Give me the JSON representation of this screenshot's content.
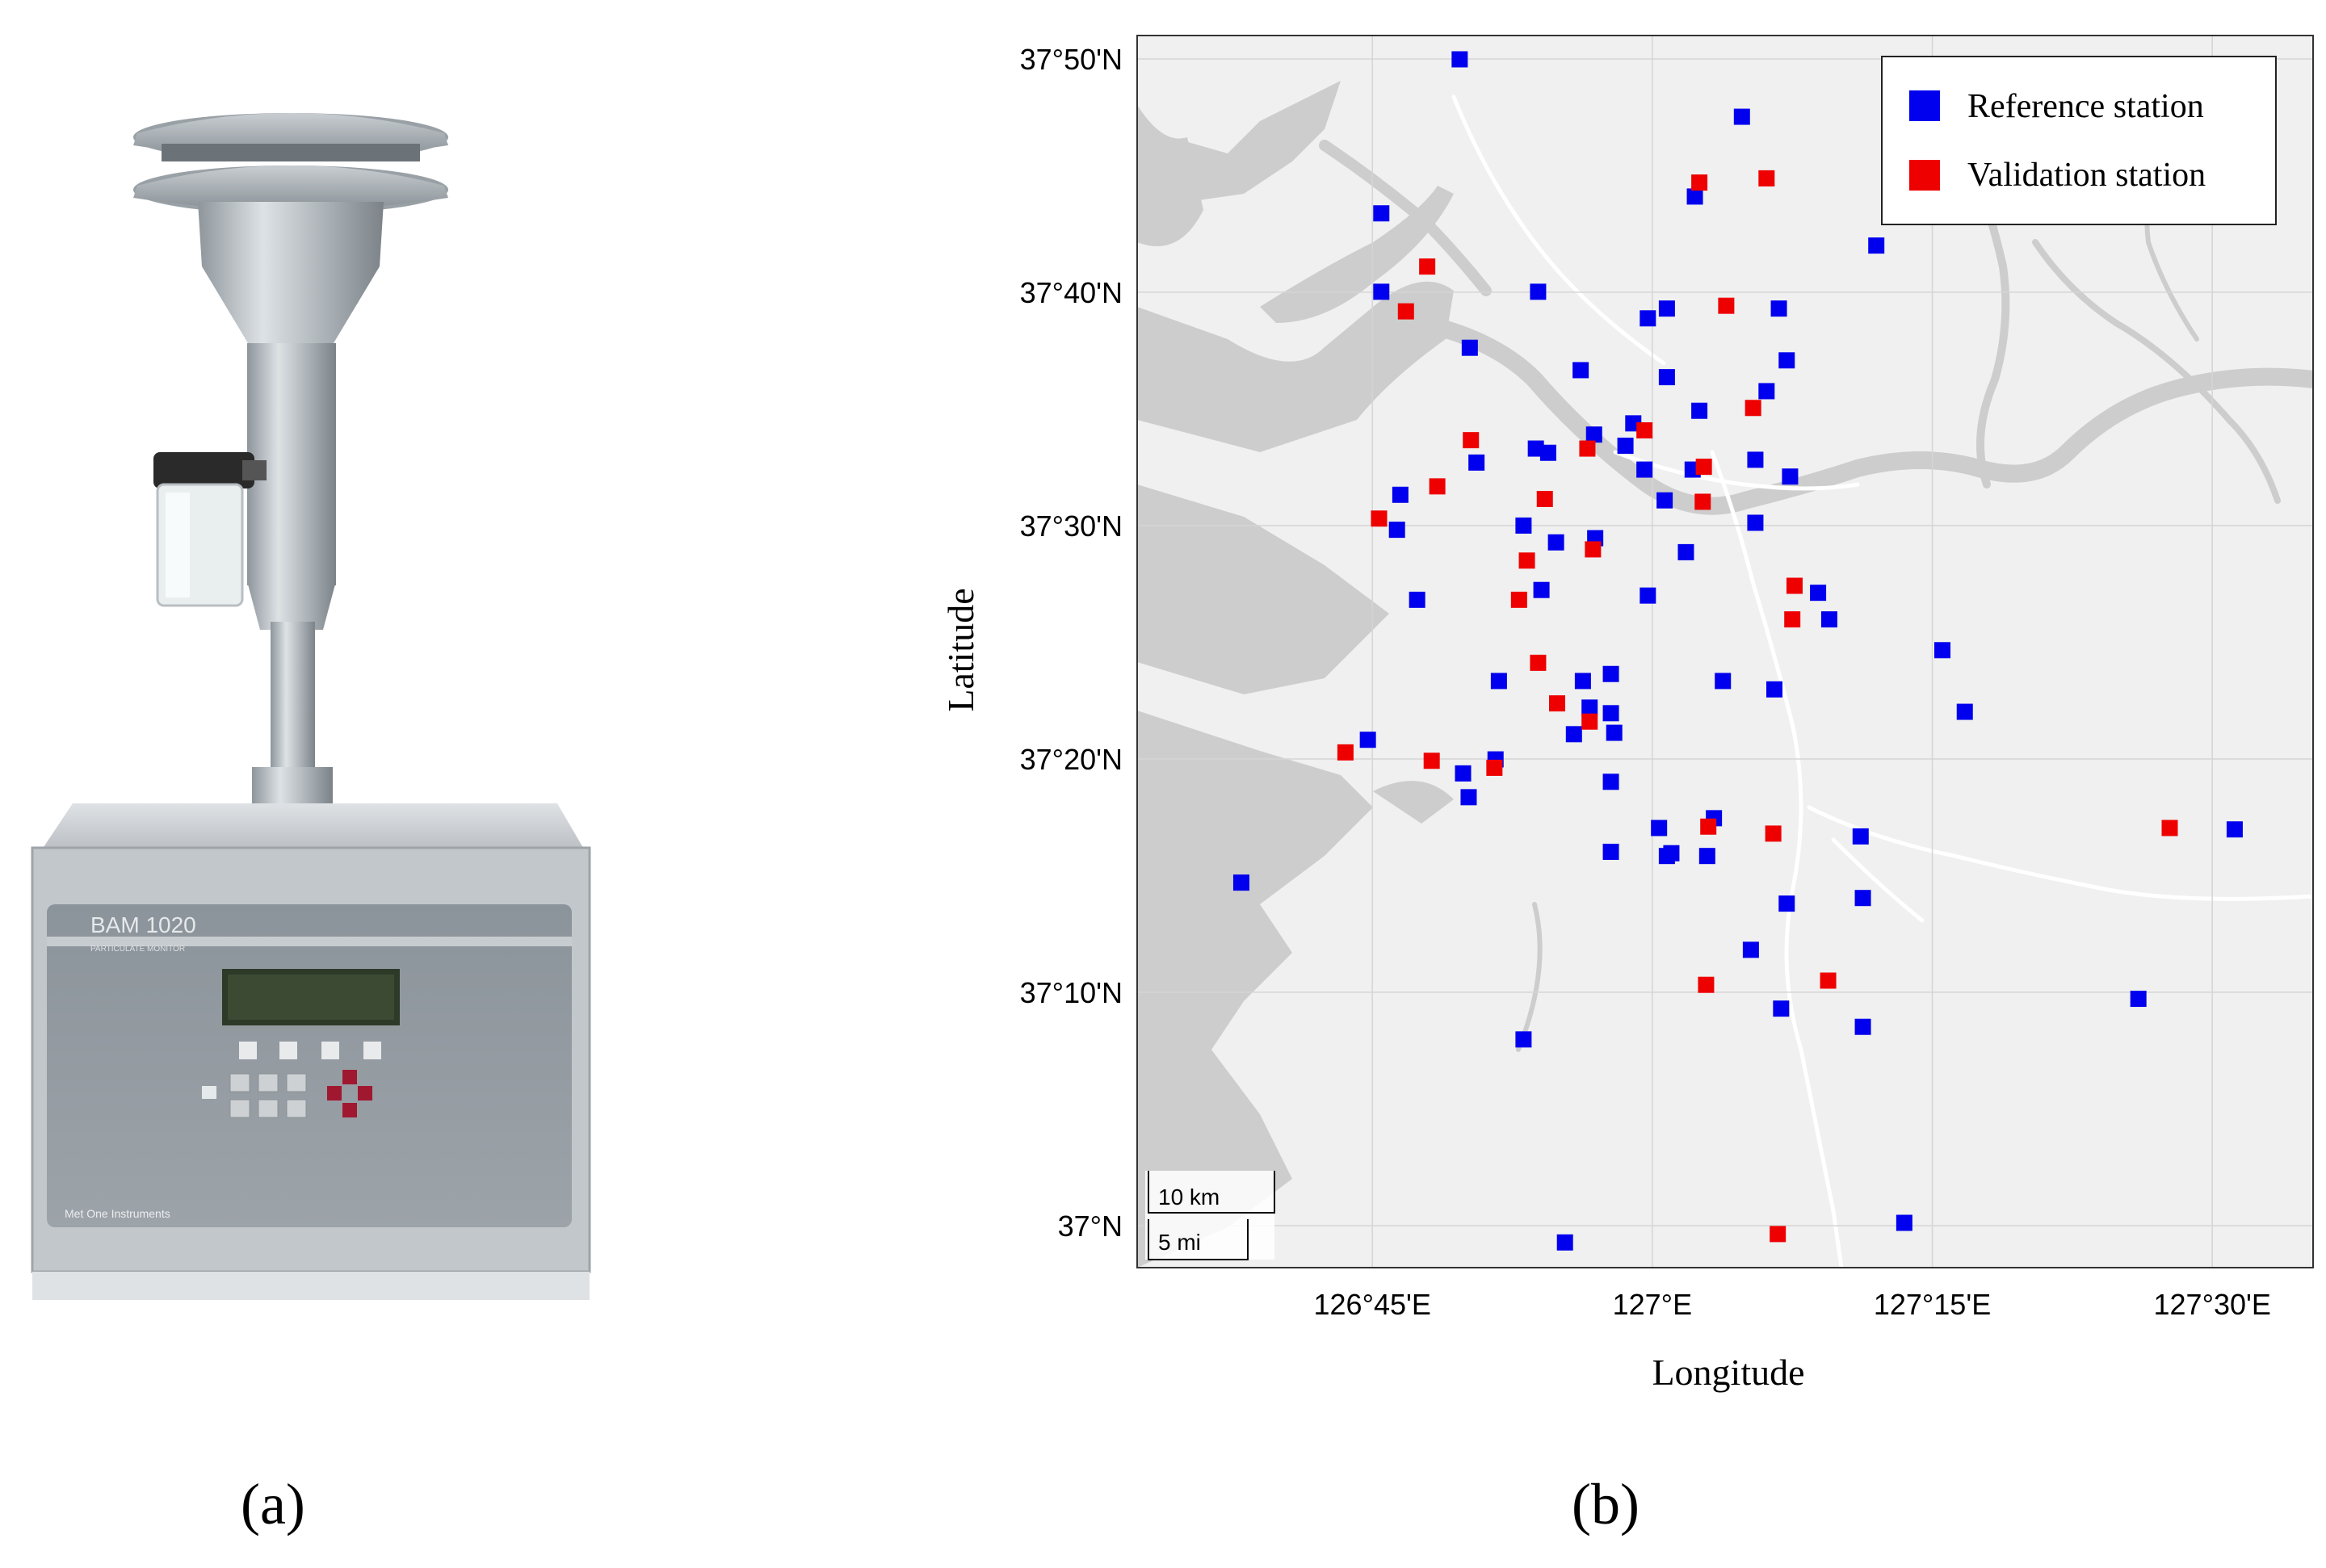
{
  "panels": {
    "a": {
      "label_text": "(a)",
      "device_screen_text": "BAM 1020",
      "device_subtitle": "PARTICULATE MONITOR",
      "device_brand": "Met One Instruments"
    },
    "b": {
      "label_text": "(b)"
    }
  },
  "map": {
    "xlabel": "Longitude",
    "ylabel": "Latitude",
    "x_ticks": [
      {
        "value": 126.75,
        "label": "126°45'E"
      },
      {
        "value": 127.0,
        "label": "127°E"
      },
      {
        "value": 127.25,
        "label": "127°15'E"
      },
      {
        "value": 127.5,
        "label": "127°30'E"
      }
    ],
    "y_ticks": [
      {
        "value": 37.0,
        "label": "37°N"
      },
      {
        "value": 37.1667,
        "label": "37°10'N"
      },
      {
        "value": 37.3333,
        "label": "37°20'N"
      },
      {
        "value": 37.5,
        "label": "37°30'N"
      },
      {
        "value": 37.6667,
        "label": "37°40'N"
      },
      {
        "value": 37.8333,
        "label": "37°50'N"
      }
    ],
    "xlim": [
      126.54,
      127.59
    ],
    "ylim": [
      36.97,
      37.85
    ],
    "legend_position": "top-right",
    "scalebar": {
      "km_label": "10 km",
      "mi_label": "5 mi"
    },
    "colors": {
      "reference": "#0000ee",
      "validation": "#ee0000",
      "land": "#f0f0f0",
      "water": "#cdcdcd",
      "roads": "#ffffff",
      "grid": "#d5d5d5"
    }
  },
  "chart_data": {
    "type": "scatter",
    "series": [
      {
        "name": "Reference station",
        "points": [
          [
            126.828,
            37.833
          ],
          [
            127.08,
            37.792
          ],
          [
            126.758,
            37.723
          ],
          [
            127.038,
            37.735
          ],
          [
            127.2,
            37.7
          ],
          [
            126.758,
            37.667
          ],
          [
            126.898,
            37.667
          ],
          [
            126.996,
            37.648
          ],
          [
            127.013,
            37.655
          ],
          [
            127.113,
            37.655
          ],
          [
            126.837,
            37.627
          ],
          [
            126.936,
            37.611
          ],
          [
            127.12,
            37.618
          ],
          [
            127.013,
            37.606
          ],
          [
            127.102,
            37.596
          ],
          [
            127.042,
            37.582
          ],
          [
            126.896,
            37.555
          ],
          [
            126.948,
            37.565
          ],
          [
            126.983,
            37.573
          ],
          [
            126.976,
            37.557
          ],
          [
            126.843,
            37.545
          ],
          [
            126.907,
            37.552
          ],
          [
            126.993,
            37.54
          ],
          [
            127.036,
            37.54
          ],
          [
            127.092,
            37.547
          ],
          [
            126.775,
            37.522
          ],
          [
            126.885,
            37.5
          ],
          [
            127.011,
            37.518
          ],
          [
            127.092,
            37.502
          ],
          [
            127.123,
            37.535
          ],
          [
            126.772,
            37.497
          ],
          [
            126.914,
            37.488
          ],
          [
            126.949,
            37.491
          ],
          [
            127.03,
            37.481
          ],
          [
            126.79,
            37.447
          ],
          [
            126.901,
            37.454
          ],
          [
            126.996,
            37.45
          ],
          [
            127.148,
            37.452
          ],
          [
            127.158,
            37.433
          ],
          [
            127.259,
            37.411
          ],
          [
            126.863,
            37.389
          ],
          [
            126.938,
            37.389
          ],
          [
            126.963,
            37.394
          ],
          [
            127.063,
            37.389
          ],
          [
            127.109,
            37.383
          ],
          [
            126.944,
            37.37
          ],
          [
            126.963,
            37.366
          ],
          [
            126.746,
            37.347
          ],
          [
            126.831,
            37.323
          ],
          [
            126.86,
            37.333
          ],
          [
            126.966,
            37.352
          ],
          [
            126.93,
            37.351
          ],
          [
            126.836,
            37.306
          ],
          [
            126.963,
            37.317
          ],
          [
            127.006,
            37.284
          ],
          [
            127.055,
            37.291
          ],
          [
            127.017,
            37.266
          ],
          [
            126.963,
            37.267
          ],
          [
            127.013,
            37.264
          ],
          [
            127.049,
            37.264
          ],
          [
            127.279,
            37.367
          ],
          [
            126.633,
            37.245
          ],
          [
            127.12,
            37.23
          ],
          [
            127.188,
            37.234
          ],
          [
            127.088,
            37.197
          ],
          [
            127.434,
            37.162
          ],
          [
            127.115,
            37.155
          ],
          [
            126.885,
            37.133
          ],
          [
            127.188,
            37.142
          ],
          [
            127.186,
            37.278
          ],
          [
            127.52,
            37.283
          ],
          [
            127.225,
            37.002
          ],
          [
            126.922,
            36.988
          ]
        ]
      },
      {
        "name": "Validation station",
        "points": [
          [
            127.042,
            37.745
          ],
          [
            127.102,
            37.748
          ],
          [
            126.799,
            37.685
          ],
          [
            126.78,
            37.653
          ],
          [
            127.066,
            37.657
          ],
          [
            127.09,
            37.584
          ],
          [
            126.838,
            37.561
          ],
          [
            126.808,
            37.528
          ],
          [
            126.756,
            37.505
          ],
          [
            126.942,
            37.555
          ],
          [
            126.993,
            37.568
          ],
          [
            126.904,
            37.519
          ],
          [
            127.046,
            37.542
          ],
          [
            126.888,
            37.475
          ],
          [
            126.947,
            37.483
          ],
          [
            127.045,
            37.517
          ],
          [
            127.127,
            37.457
          ],
          [
            127.125,
            37.433
          ],
          [
            126.881,
            37.447
          ],
          [
            126.898,
            37.402
          ],
          [
            126.944,
            37.36
          ],
          [
            126.915,
            37.373
          ],
          [
            126.726,
            37.338
          ],
          [
            126.803,
            37.332
          ],
          [
            126.859,
            37.327
          ],
          [
            127.157,
            37.175
          ],
          [
            127.05,
            37.285
          ],
          [
            127.108,
            37.28
          ],
          [
            127.048,
            37.172
          ],
          [
            127.462,
            37.284
          ],
          [
            127.112,
            36.994
          ]
        ]
      }
    ]
  }
}
